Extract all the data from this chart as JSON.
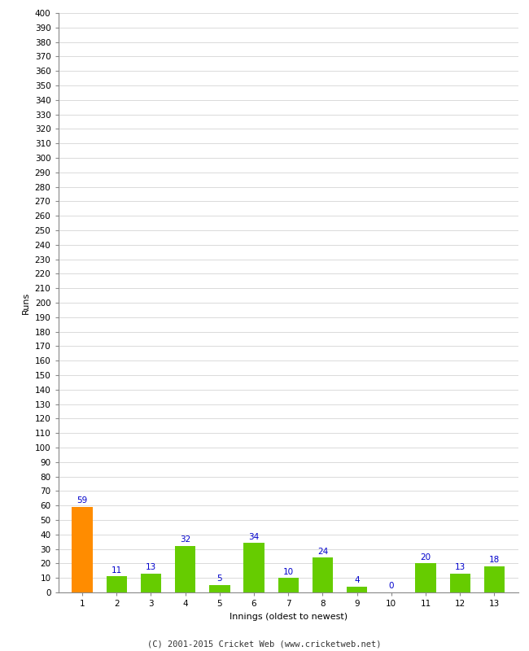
{
  "innings": [
    1,
    2,
    3,
    4,
    5,
    6,
    7,
    8,
    9,
    10,
    11,
    12,
    13
  ],
  "runs": [
    59,
    11,
    13,
    32,
    5,
    34,
    10,
    24,
    4,
    0,
    20,
    13,
    18
  ],
  "bar_colors": [
    "#ff8c00",
    "#66cc00",
    "#66cc00",
    "#66cc00",
    "#66cc00",
    "#66cc00",
    "#66cc00",
    "#66cc00",
    "#66cc00",
    "#66cc00",
    "#66cc00",
    "#66cc00",
    "#66cc00"
  ],
  "xlabel": "Innings (oldest to newest)",
  "ylabel": "Runs",
  "ylim_min": 0,
  "ylim_max": 400,
  "ytick_step": 10,
  "footer": "(C) 2001-2015 Cricket Web (www.cricketweb.net)",
  "label_color": "#0000cc",
  "grid_color": "#cccccc",
  "background_color": "#ffffff",
  "label_fontsize": 7.5,
  "axis_label_fontsize": 8,
  "tick_fontsize": 7.5,
  "footer_fontsize": 7.5
}
